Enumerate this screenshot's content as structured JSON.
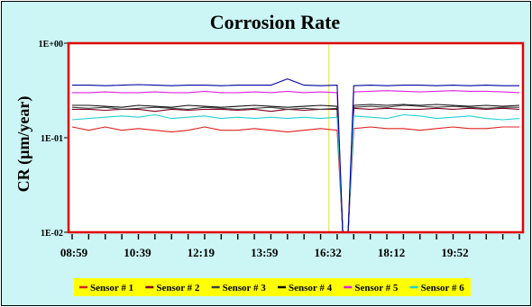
{
  "chart_data": {
    "type": "line",
    "title": "Corrosion Rate",
    "ylabel": "CR (µm/year)",
    "xlabel": "",
    "yscale": "log",
    "ylim": [
      0.01,
      1
    ],
    "yticks": [
      {
        "value": 1,
        "label": "1E+00"
      },
      {
        "value": 0.1,
        "label": "1E-01"
      },
      {
        "value": 0.01,
        "label": "1E-02"
      }
    ],
    "x_tick_labels": [
      "08:59",
      "10:39",
      "12:19",
      "13:59",
      "16:32",
      "18:12",
      "19:52"
    ],
    "x": [
      "08:59",
      "09:24",
      "09:49",
      "10:14",
      "10:39",
      "11:04",
      "11:29",
      "11:54",
      "12:19",
      "12:44",
      "13:09",
      "13:34",
      "13:59",
      "14:24",
      "14:49",
      "15:14",
      "15:39",
      "16:32",
      "16:57",
      "17:22",
      "17:47",
      "18:12",
      "18:37",
      "19:02",
      "19:27",
      "19:52",
      "20:17",
      "20:42"
    ],
    "gap": {
      "start_index": 16,
      "end_index": 17,
      "min_value": 0.01
    },
    "marker_line": {
      "after_index": 15,
      "color": "#e0e040"
    },
    "grid": false,
    "legend_position": "bottom",
    "plot_background": "#ffffff",
    "plot_border_color": "#e00000",
    "series": [
      {
        "name": "Sensor # 1",
        "color": "#e02020",
        "values": [
          0.13,
          0.12,
          0.13,
          0.12,
          0.125,
          0.12,
          0.115,
          0.12,
          0.13,
          0.12,
          0.12,
          0.125,
          0.12,
          0.115,
          0.12,
          0.125,
          0.12,
          0.125,
          0.13,
          0.125,
          0.125,
          0.12,
          0.125,
          0.13,
          0.125,
          0.125,
          0.13,
          0.13
        ]
      },
      {
        "name": "Sensor # 2",
        "color": "#800020",
        "values": [
          0.2,
          0.2,
          0.195,
          0.2,
          0.2,
          0.19,
          0.2,
          0.195,
          0.2,
          0.2,
          0.195,
          0.2,
          0.19,
          0.2,
          0.195,
          0.2,
          0.2,
          0.205,
          0.2,
          0.205,
          0.2,
          0.2,
          0.205,
          0.2,
          0.205,
          0.2,
          0.205,
          0.2
        ]
      },
      {
        "name": "Sensor # 3",
        "color": "#404040",
        "values": [
          0.21,
          0.205,
          0.21,
          0.2,
          0.205,
          0.21,
          0.205,
          0.2,
          0.21,
          0.205,
          0.2,
          0.205,
          0.21,
          0.2,
          0.205,
          0.2,
          0.205,
          0.21,
          0.215,
          0.21,
          0.22,
          0.215,
          0.21,
          0.215,
          0.21,
          0.205,
          0.21,
          0.21
        ]
      },
      {
        "name": "Sensor # 4",
        "color": "#101010",
        "values": [
          0.22,
          0.22,
          0.215,
          0.21,
          0.22,
          0.215,
          0.21,
          0.22,
          0.215,
          0.21,
          0.215,
          0.22,
          0.215,
          0.21,
          0.215,
          0.22,
          0.215,
          0.22,
          0.225,
          0.22,
          0.225,
          0.22,
          0.225,
          0.22,
          0.215,
          0.22,
          0.215,
          0.22
        ]
      },
      {
        "name": "Sensor # 5",
        "color": "#e020e0",
        "values": [
          0.3,
          0.3,
          0.305,
          0.3,
          0.3,
          0.305,
          0.3,
          0.3,
          0.31,
          0.3,
          0.3,
          0.305,
          0.3,
          0.31,
          0.3,
          0.305,
          0.3,
          0.305,
          0.31,
          0.315,
          0.31,
          0.305,
          0.31,
          0.315,
          0.31,
          0.31,
          0.305,
          0.3
        ]
      },
      {
        "name": "Sensor # 6",
        "color": "#20d0d0",
        "values": [
          0.155,
          0.16,
          0.165,
          0.17,
          0.165,
          0.175,
          0.16,
          0.165,
          0.17,
          0.16,
          0.165,
          0.16,
          0.165,
          0.16,
          0.165,
          0.16,
          0.165,
          0.17,
          0.165,
          0.16,
          0.175,
          0.17,
          0.16,
          0.165,
          0.17,
          0.16,
          0.155,
          0.16
        ]
      },
      {
        "name": "",
        "color": "#0000a0",
        "values": [
          0.36,
          0.36,
          0.355,
          0.36,
          0.365,
          0.36,
          0.355,
          0.36,
          0.36,
          0.355,
          0.36,
          0.36,
          0.36,
          0.42,
          0.36,
          0.355,
          0.36,
          0.355,
          0.36,
          0.355,
          0.36,
          0.36,
          0.355,
          0.36,
          0.355,
          0.36,
          0.355,
          0.355
        ]
      }
    ]
  }
}
